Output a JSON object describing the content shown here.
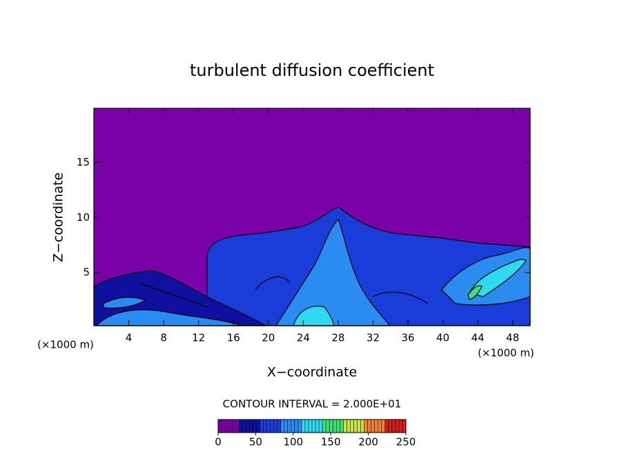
{
  "chart_data": {
    "type": "contour",
    "title": "turbulent diffusion coefficient",
    "x_label": "X−coordinate",
    "y_label": "Z−coordinate",
    "x_unit_label": "(×1000 m)",
    "y_unit_label": "(×1000 m)",
    "xlim": [
      0,
      50
    ],
    "xticks": [
      4,
      8,
      12,
      16,
      20,
      24,
      28,
      32,
      36,
      40,
      44,
      48
    ],
    "ylim": [
      0.2,
      19.9
    ],
    "yticks": [
      5,
      10,
      15
    ],
    "contour_note": "CONTOUR INTERVAL = 2.000E+01",
    "colorbar": {
      "lim": [
        0,
        250
      ],
      "ticks": [
        0,
        50,
        100,
        150,
        200,
        250
      ],
      "colormap": [
        "#7a00a8",
        "#1010a0",
        "#1a3cd8",
        "#2a8cf0",
        "#30d8f0",
        "#40e070",
        "#c8e040",
        "#f08030",
        "#d02020"
      ]
    }
  }
}
